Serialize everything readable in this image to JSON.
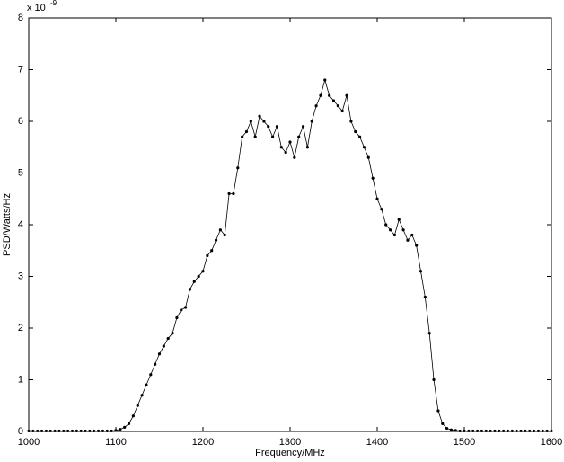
{
  "chart_data": {
    "type": "line",
    "xlabel": "Frequency/MHz",
    "ylabel": "PSD/Watts/Hz",
    "y_multiplier": {
      "base": "x 10",
      "exponent": "-9"
    },
    "xlim": [
      1000,
      1600
    ],
    "xticks": [
      1000,
      1100,
      1200,
      1300,
      1400,
      1500,
      1600
    ],
    "ylim": [
      0,
      8
    ],
    "yticks": [
      0,
      1,
      2,
      3,
      4,
      5,
      6,
      7,
      8
    ],
    "grid": false,
    "color": "#000000",
    "marker": "dot",
    "x": [
      1000,
      1005,
      1010,
      1015,
      1020,
      1025,
      1030,
      1035,
      1040,
      1045,
      1050,
      1055,
      1060,
      1065,
      1070,
      1075,
      1080,
      1085,
      1090,
      1095,
      1100,
      1105,
      1110,
      1115,
      1120,
      1125,
      1130,
      1135,
      1140,
      1145,
      1150,
      1155,
      1160,
      1165,
      1170,
      1175,
      1180,
      1185,
      1190,
      1195,
      1200,
      1205,
      1210,
      1215,
      1220,
      1225,
      1230,
      1235,
      1240,
      1245,
      1250,
      1255,
      1260,
      1265,
      1270,
      1275,
      1280,
      1285,
      1290,
      1295,
      1300,
      1305,
      1310,
      1315,
      1320,
      1325,
      1330,
      1335,
      1340,
      1345,
      1350,
      1355,
      1360,
      1365,
      1370,
      1375,
      1380,
      1385,
      1390,
      1395,
      1400,
      1405,
      1410,
      1415,
      1420,
      1425,
      1430,
      1435,
      1440,
      1445,
      1450,
      1455,
      1460,
      1465,
      1470,
      1475,
      1480,
      1485,
      1490,
      1495,
      1500,
      1505,
      1510,
      1515,
      1520,
      1525,
      1530,
      1535,
      1540,
      1545,
      1550,
      1555,
      1560,
      1565,
      1570,
      1575,
      1580,
      1585,
      1590,
      1595,
      1600
    ],
    "values": [
      0.01,
      0.01,
      0.01,
      0.01,
      0.01,
      0.01,
      0.01,
      0.01,
      0.01,
      0.01,
      0.01,
      0.01,
      0.01,
      0.01,
      0.01,
      0.01,
      0.01,
      0.01,
      0.01,
      0.01,
      0.02,
      0.04,
      0.08,
      0.15,
      0.3,
      0.5,
      0.7,
      0.9,
      1.1,
      1.3,
      1.5,
      1.65,
      1.8,
      1.9,
      2.2,
      2.35,
      2.4,
      2.75,
      2.9,
      3.0,
      3.1,
      3.4,
      3.5,
      3.7,
      3.9,
      3.8,
      4.6,
      4.6,
      5.1,
      5.7,
      5.8,
      6.0,
      5.7,
      6.1,
      6.0,
      5.9,
      5.7,
      5.9,
      5.5,
      5.4,
      5.6,
      5.3,
      5.7,
      5.9,
      5.5,
      6.0,
      6.3,
      6.5,
      6.8,
      6.5,
      6.4,
      6.3,
      6.2,
      6.5,
      6.0,
      5.8,
      5.7,
      5.5,
      5.3,
      4.9,
      4.5,
      4.3,
      4.0,
      3.9,
      3.8,
      4.1,
      3.9,
      3.7,
      3.8,
      3.6,
      3.1,
      2.6,
      1.9,
      1.0,
      0.4,
      0.15,
      0.06,
      0.03,
      0.02,
      0.01,
      0.01,
      0.01,
      0.01,
      0.01,
      0.01,
      0.01,
      0.01,
      0.01,
      0.01,
      0.01,
      0.01,
      0.01,
      0.01,
      0.01,
      0.01,
      0.01,
      0.01,
      0.01,
      0.01,
      0.01,
      0.01
    ]
  }
}
